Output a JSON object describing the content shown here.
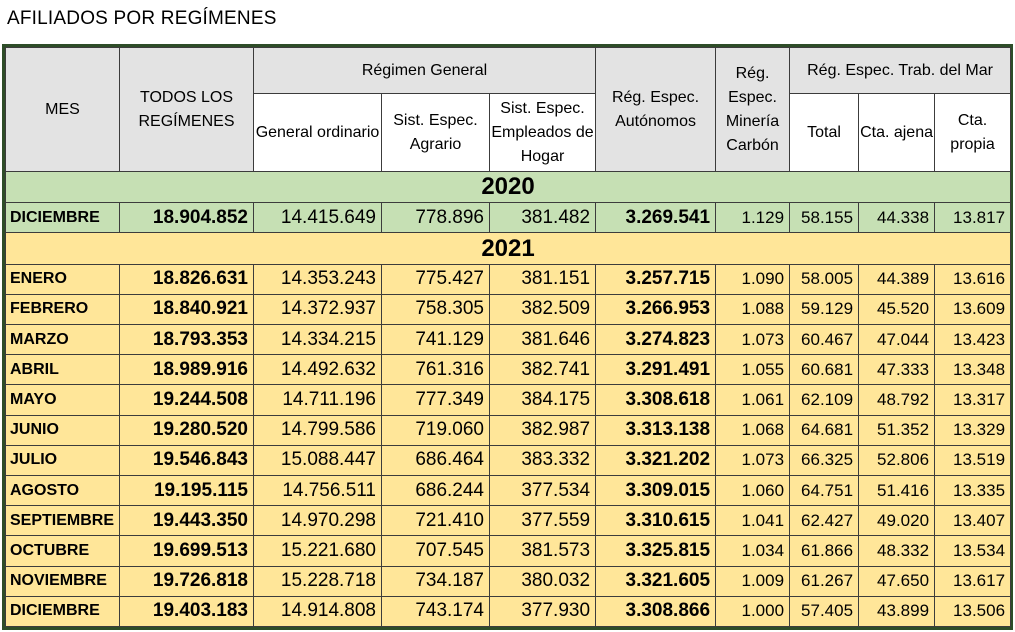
{
  "title": "AFILIADOS POR REGÍMENES",
  "headers": {
    "mes": "MES",
    "todos": "TODOS LOS REGÍMENES",
    "regimen_general": "Régimen General",
    "general_ordinario": "General ordinario",
    "agrario": "Sist. Espec. Agrario",
    "hogar": "Sist. Espec. Empleados de Hogar",
    "autonomos": "Rég. Espec. Autónomos",
    "mineria": "Rég. Espec. Minería Carbón",
    "mar": "Rég. Espec. Trab. del Mar",
    "mar_total": "Total",
    "mar_ajena": "Cta. ajena",
    "mar_propia": "Cta. propia"
  },
  "years": [
    "2020",
    "2021"
  ],
  "rows2020": [
    {
      "mes": "DICIEMBRE",
      "todos": "18.904.852",
      "general": "14.415.649",
      "agrario": "778.896",
      "hogar": "381.482",
      "autonomos": "3.269.541",
      "mineria": "1.129",
      "total": "58.155",
      "ajena": "44.338",
      "propia": "13.817"
    }
  ],
  "rows2021": [
    {
      "mes": "ENERO",
      "todos": "18.826.631",
      "general": "14.353.243",
      "agrario": "775.427",
      "hogar": "381.151",
      "autonomos": "3.257.715",
      "mineria": "1.090",
      "total": "58.005",
      "ajena": "44.389",
      "propia": "13.616"
    },
    {
      "mes": "FEBRERO",
      "todos": "18.840.921",
      "general": "14.372.937",
      "agrario": "758.305",
      "hogar": "382.509",
      "autonomos": "3.266.953",
      "mineria": "1.088",
      "total": "59.129",
      "ajena": "45.520",
      "propia": "13.609"
    },
    {
      "mes": "MARZO",
      "todos": "18.793.353",
      "general": "14.334.215",
      "agrario": "741.129",
      "hogar": "381.646",
      "autonomos": "3.274.823",
      "mineria": "1.073",
      "total": "60.467",
      "ajena": "47.044",
      "propia": "13.423"
    },
    {
      "mes": "ABRIL",
      "todos": "18.989.916",
      "general": "14.492.632",
      "agrario": "761.316",
      "hogar": "382.741",
      "autonomos": "3.291.491",
      "mineria": "1.055",
      "total": "60.681",
      "ajena": "47.333",
      "propia": "13.348"
    },
    {
      "mes": "MAYO",
      "todos": "19.244.508",
      "general": "14.711.196",
      "agrario": "777.349",
      "hogar": "384.175",
      "autonomos": "3.308.618",
      "mineria": "1.061",
      "total": "62.109",
      "ajena": "48.792",
      "propia": "13.317"
    },
    {
      "mes": "JUNIO",
      "todos": "19.280.520",
      "general": "14.799.586",
      "agrario": "719.060",
      "hogar": "382.987",
      "autonomos": "3.313.138",
      "mineria": "1.068",
      "total": "64.681",
      "ajena": "51.352",
      "propia": "13.329"
    },
    {
      "mes": "JULIO",
      "todos": "19.546.843",
      "general": "15.088.447",
      "agrario": "686.464",
      "hogar": "383.332",
      "autonomos": "3.321.202",
      "mineria": "1.073",
      "total": "66.325",
      "ajena": "52.806",
      "propia": "13.519"
    },
    {
      "mes": "AGOSTO",
      "todos": "19.195.115",
      "general": "14.756.511",
      "agrario": "686.244",
      "hogar": "377.534",
      "autonomos": "3.309.015",
      "mineria": "1.060",
      "total": "64.751",
      "ajena": "51.416",
      "propia": "13.335"
    },
    {
      "mes": "SEPTIEMBRE",
      "todos": "19.443.350",
      "general": "14.970.298",
      "agrario": "721.410",
      "hogar": "377.559",
      "autonomos": "3.310.615",
      "mineria": "1.041",
      "total": "62.427",
      "ajena": "49.020",
      "propia": "13.407"
    },
    {
      "mes": "OCTUBRE",
      "todos": "19.699.513",
      "general": "15.221.680",
      "agrario": "707.545",
      "hogar": "381.573",
      "autonomos": "3.325.815",
      "mineria": "1.034",
      "total": "61.866",
      "ajena": "48.332",
      "propia": "13.534"
    },
    {
      "mes": "NOVIEMBRE",
      "todos": "19.726.818",
      "general": "15.228.718",
      "agrario": "734.187",
      "hogar": "380.032",
      "autonomos": "3.321.605",
      "mineria": "1.009",
      "total": "61.267",
      "ajena": "47.650",
      "propia": "13.617"
    },
    {
      "mes": "DICIEMBRE",
      "todos": "19.403.183",
      "general": "14.914.808",
      "agrario": "743.174",
      "hogar": "377.930",
      "autonomos": "3.308.866",
      "mineria": "1.000",
      "total": "57.405",
      "ajena": "43.899",
      "propia": "13.506"
    }
  ],
  "colors": {
    "green_row": "#c6e0b4",
    "yellow_row": "#ffe699",
    "border": "#2e4d28",
    "header_grey": "#e3e3e3"
  }
}
